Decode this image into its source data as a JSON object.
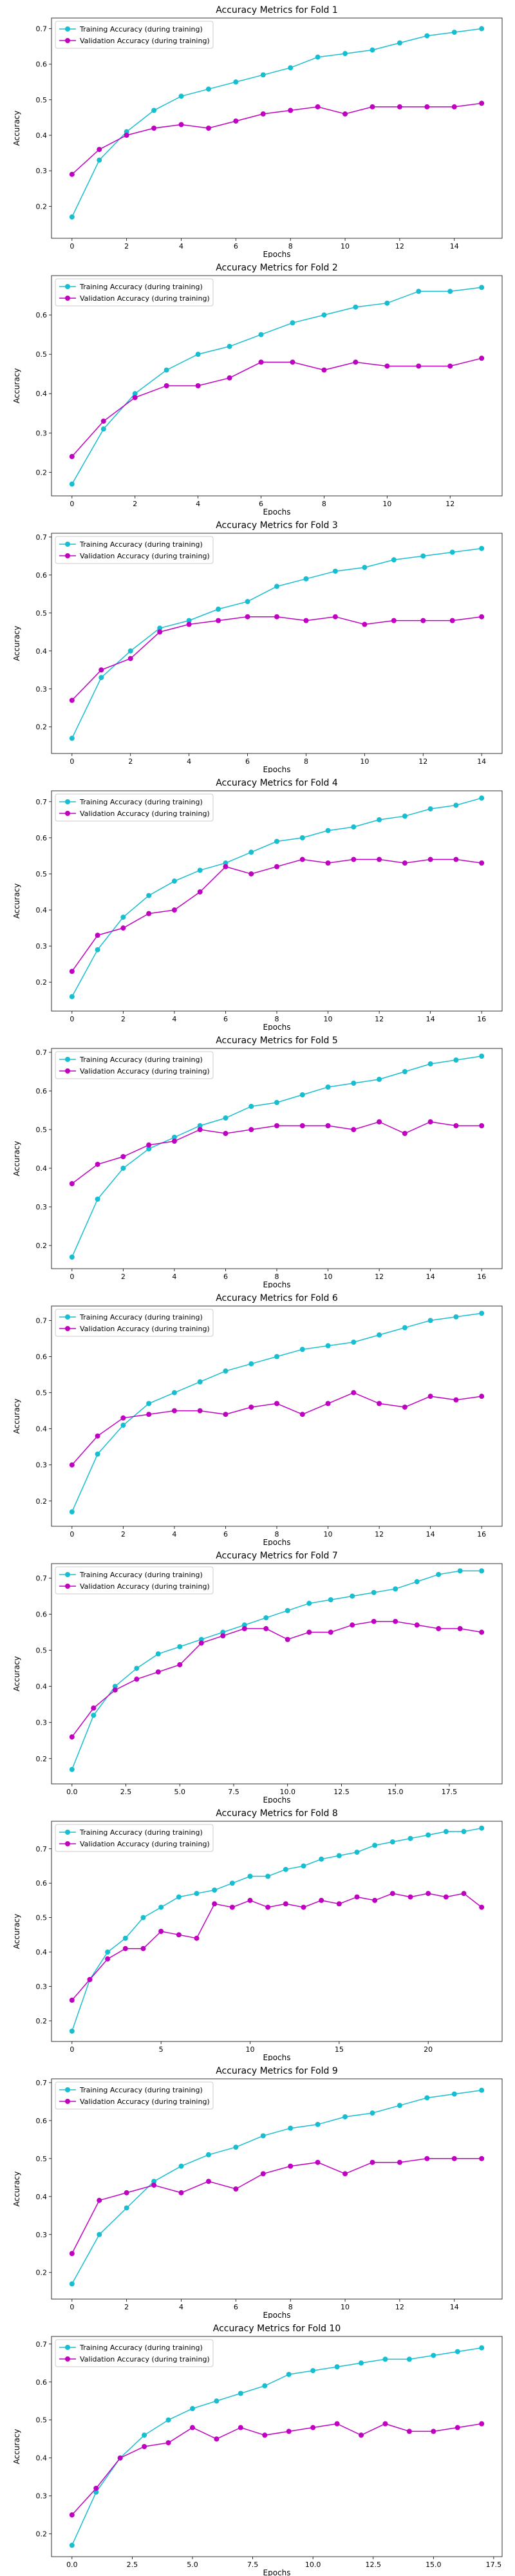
{
  "chart_data": [
    {
      "type": "line",
      "title": "Accuracy Metrics for Fold 1",
      "xlabel": "Epochs",
      "ylabel": "Accuracy",
      "xlim": [
        -0.75,
        15.75
      ],
      "ylim": [
        0.11,
        0.73
      ],
      "xticks": [
        0,
        2,
        4,
        6,
        8,
        10,
        12,
        14
      ],
      "yticks": [
        0.2,
        0.3,
        0.4,
        0.5,
        0.6,
        0.7
      ],
      "x": [
        0,
        1,
        2,
        3,
        4,
        5,
        6,
        7,
        8,
        9,
        10,
        11,
        12,
        13,
        14,
        15
      ],
      "legend": "top-left",
      "series": [
        {
          "name": "Training Accuracy (during training)",
          "color": "#17becf",
          "values": [
            0.17,
            0.33,
            0.41,
            0.47,
            0.51,
            0.53,
            0.55,
            0.57,
            0.59,
            0.62,
            0.63,
            0.64,
            0.66,
            0.68,
            0.69,
            0.7
          ]
        },
        {
          "name": "Validation Accuracy (during training)",
          "color": "#c000c0",
          "values": [
            0.29,
            0.36,
            0.4,
            0.42,
            0.43,
            0.42,
            0.44,
            0.46,
            0.47,
            0.48,
            0.46,
            0.48,
            0.48,
            0.48,
            0.48,
            0.49
          ]
        }
      ]
    },
    {
      "type": "line",
      "title": "Accuracy Metrics for Fold 2",
      "xlabel": "Epochs",
      "ylabel": "Accuracy",
      "xlim": [
        -0.65,
        13.65
      ],
      "ylim": [
        0.14,
        0.7
      ],
      "xticks": [
        0,
        2,
        4,
        6,
        8,
        10,
        12
      ],
      "yticks": [
        0.2,
        0.3,
        0.4,
        0.5,
        0.6
      ],
      "x": [
        0,
        1,
        2,
        3,
        4,
        5,
        6,
        7,
        8,
        9,
        10,
        11,
        12,
        13
      ],
      "legend": "top-left",
      "series": [
        {
          "name": "Training Accuracy (during training)",
          "color": "#17becf",
          "values": [
            0.17,
            0.31,
            0.4,
            0.46,
            0.5,
            0.52,
            0.55,
            0.58,
            0.6,
            0.62,
            0.63,
            0.66,
            0.66,
            0.67
          ]
        },
        {
          "name": "Validation Accuracy (during training)",
          "color": "#c000c0",
          "values": [
            0.24,
            0.33,
            0.39,
            0.42,
            0.42,
            0.44,
            0.48,
            0.48,
            0.46,
            0.48,
            0.47,
            0.47,
            0.47,
            0.49
          ]
        }
      ]
    },
    {
      "type": "line",
      "title": "Accuracy Metrics for Fold 3",
      "xlabel": "Epochs",
      "ylabel": "Accuracy",
      "xlim": [
        -0.7,
        14.7
      ],
      "ylim": [
        0.13,
        0.71
      ],
      "xticks": [
        0,
        2,
        4,
        6,
        8,
        10,
        12,
        14
      ],
      "yticks": [
        0.2,
        0.3,
        0.4,
        0.5,
        0.6,
        0.7
      ],
      "x": [
        0,
        1,
        2,
        3,
        4,
        5,
        6,
        7,
        8,
        9,
        10,
        11,
        12,
        13,
        14
      ],
      "legend": "top-left",
      "series": [
        {
          "name": "Training Accuracy (during training)",
          "color": "#17becf",
          "values": [
            0.17,
            0.33,
            0.4,
            0.46,
            0.48,
            0.51,
            0.53,
            0.57,
            0.59,
            0.61,
            0.62,
            0.64,
            0.65,
            0.66,
            0.67
          ]
        },
        {
          "name": "Validation Accuracy (during training)",
          "color": "#c000c0",
          "values": [
            0.27,
            0.35,
            0.38,
            0.45,
            0.47,
            0.48,
            0.49,
            0.49,
            0.48,
            0.49,
            0.47,
            0.48,
            0.48,
            0.48,
            0.49
          ]
        }
      ]
    },
    {
      "type": "line",
      "title": "Accuracy Metrics for Fold 4",
      "xlabel": "Epochs",
      "ylabel": "Accuracy",
      "xlim": [
        -0.8,
        16.8
      ],
      "ylim": [
        0.12,
        0.73
      ],
      "xticks": [
        0,
        2,
        4,
        6,
        8,
        10,
        12,
        14,
        16
      ],
      "yticks": [
        0.2,
        0.3,
        0.4,
        0.5,
        0.6,
        0.7
      ],
      "x": [
        0,
        1,
        2,
        3,
        4,
        5,
        6,
        7,
        8,
        9,
        10,
        11,
        12,
        13,
        14,
        15,
        16
      ],
      "legend": "top-left",
      "series": [
        {
          "name": "Training Accuracy (during training)",
          "color": "#17becf",
          "values": [
            0.16,
            0.29,
            0.38,
            0.44,
            0.48,
            0.51,
            0.53,
            0.56,
            0.59,
            0.6,
            0.62,
            0.63,
            0.65,
            0.66,
            0.68,
            0.69,
            0.71
          ]
        },
        {
          "name": "Validation Accuracy (during training)",
          "color": "#c000c0",
          "values": [
            0.23,
            0.33,
            0.35,
            0.39,
            0.4,
            0.45,
            0.52,
            0.5,
            0.52,
            0.54,
            0.53,
            0.54,
            0.54,
            0.53,
            0.54,
            0.54,
            0.53
          ]
        }
      ]
    },
    {
      "type": "line",
      "title": "Accuracy Metrics for Fold 5",
      "xlabel": "Epochs",
      "ylabel": "Accuracy",
      "xlim": [
        -0.8,
        16.8
      ],
      "ylim": [
        0.14,
        0.71
      ],
      "xticks": [
        0,
        2,
        4,
        6,
        8,
        10,
        12,
        14,
        16
      ],
      "yticks": [
        0.2,
        0.3,
        0.4,
        0.5,
        0.6,
        0.7
      ],
      "x": [
        0,
        1,
        2,
        3,
        4,
        5,
        6,
        7,
        8,
        9,
        10,
        11,
        12,
        13,
        14,
        15,
        16
      ],
      "legend": "top-left",
      "series": [
        {
          "name": "Training Accuracy (during training)",
          "color": "#17becf",
          "values": [
            0.17,
            0.32,
            0.4,
            0.45,
            0.48,
            0.51,
            0.53,
            0.56,
            0.57,
            0.59,
            0.61,
            0.62,
            0.63,
            0.65,
            0.67,
            0.68,
            0.69
          ]
        },
        {
          "name": "Validation Accuracy (during training)",
          "color": "#c000c0",
          "values": [
            0.36,
            0.41,
            0.43,
            0.46,
            0.47,
            0.5,
            0.49,
            0.5,
            0.51,
            0.51,
            0.51,
            0.5,
            0.52,
            0.49,
            0.52,
            0.51,
            0.51
          ]
        }
      ]
    },
    {
      "type": "line",
      "title": "Accuracy Metrics for Fold 6",
      "xlabel": "Epochs",
      "ylabel": "Accuracy",
      "xlim": [
        -0.8,
        16.8
      ],
      "ylim": [
        0.13,
        0.74
      ],
      "xticks": [
        0,
        2,
        4,
        6,
        8,
        10,
        12,
        14,
        16
      ],
      "yticks": [
        0.2,
        0.3,
        0.4,
        0.5,
        0.6,
        0.7
      ],
      "x": [
        0,
        1,
        2,
        3,
        4,
        5,
        6,
        7,
        8,
        9,
        10,
        11,
        12,
        13,
        14,
        15,
        16
      ],
      "legend": "top-left",
      "series": [
        {
          "name": "Training Accuracy (during training)",
          "color": "#17becf",
          "values": [
            0.17,
            0.33,
            0.41,
            0.47,
            0.5,
            0.53,
            0.56,
            0.58,
            0.6,
            0.62,
            0.63,
            0.64,
            0.66,
            0.68,
            0.7,
            0.71,
            0.72
          ]
        },
        {
          "name": "Validation Accuracy (during training)",
          "color": "#c000c0",
          "values": [
            0.3,
            0.38,
            0.43,
            0.44,
            0.45,
            0.45,
            0.44,
            0.46,
            0.47,
            0.44,
            0.47,
            0.5,
            0.47,
            0.46,
            0.49,
            0.48,
            0.49
          ]
        }
      ]
    },
    {
      "type": "line",
      "title": "Accuracy Metrics for Fold 7",
      "xlabel": "Epochs",
      "ylabel": "Accuracy",
      "xlim": [
        -0.95,
        19.95
      ],
      "ylim": [
        0.13,
        0.74
      ],
      "xticks": [
        0.0,
        2.5,
        5.0,
        7.5,
        10.0,
        12.5,
        15.0,
        17.5
      ],
      "xtick_labels": [
        "0.0",
        "2.5",
        "5.0",
        "7.5",
        "10.0",
        "12.5",
        "15.0",
        "17.5"
      ],
      "yticks": [
        0.2,
        0.3,
        0.4,
        0.5,
        0.6,
        0.7
      ],
      "x": [
        0,
        1,
        2,
        3,
        4,
        5,
        6,
        7,
        8,
        9,
        10,
        11,
        12,
        13,
        14,
        15,
        16,
        17,
        18,
        19
      ],
      "legend": "top-left",
      "series": [
        {
          "name": "Training Accuracy (during training)",
          "color": "#17becf",
          "values": [
            0.17,
            0.32,
            0.4,
            0.45,
            0.49,
            0.51,
            0.53,
            0.55,
            0.57,
            0.59,
            0.61,
            0.63,
            0.64,
            0.65,
            0.66,
            0.67,
            0.69,
            0.71,
            0.72,
            0.72
          ]
        },
        {
          "name": "Validation Accuracy (during training)",
          "color": "#c000c0",
          "values": [
            0.26,
            0.34,
            0.39,
            0.42,
            0.44,
            0.46,
            0.52,
            0.54,
            0.56,
            0.56,
            0.53,
            0.55,
            0.55,
            0.57,
            0.58,
            0.58,
            0.57,
            0.56,
            0.56,
            0.55
          ]
        }
      ]
    },
    {
      "type": "line",
      "title": "Accuracy Metrics for Fold 8",
      "xlabel": "Epochs",
      "ylabel": "Accuracy",
      "xlim": [
        -1.15,
        24.15
      ],
      "ylim": [
        0.14,
        0.78
      ],
      "xticks": [
        0,
        5,
        10,
        15,
        20
      ],
      "yticks": [
        0.2,
        0.3,
        0.4,
        0.5,
        0.6,
        0.7
      ],
      "x": [
        0,
        1,
        2,
        3,
        4,
        5,
        6,
        7,
        8,
        9,
        10,
        11,
        12,
        13,
        14,
        15,
        16,
        17,
        18,
        19,
        20,
        21,
        22,
        23
      ],
      "legend": "top-left",
      "series": [
        {
          "name": "Training Accuracy (during training)",
          "color": "#17becf",
          "values": [
            0.17,
            0.32,
            0.4,
            0.44,
            0.5,
            0.53,
            0.56,
            0.57,
            0.58,
            0.6,
            0.62,
            0.62,
            0.64,
            0.65,
            0.67,
            0.68,
            0.69,
            0.71,
            0.72,
            0.73,
            0.74,
            0.75,
            0.75,
            0.76
          ]
        },
        {
          "name": "Validation Accuracy (during training)",
          "color": "#c000c0",
          "values": [
            0.26,
            0.32,
            0.38,
            0.41,
            0.41,
            0.46,
            0.45,
            0.44,
            0.54,
            0.53,
            0.55,
            0.53,
            0.54,
            0.53,
            0.55,
            0.54,
            0.56,
            0.55,
            0.57,
            0.56,
            0.57,
            0.56,
            0.57,
            0.53
          ]
        }
      ]
    },
    {
      "type": "line",
      "title": "Accuracy Metrics for Fold 9",
      "xlabel": "Epochs",
      "ylabel": "Accuracy",
      "xlim": [
        -0.75,
        15.75
      ],
      "ylim": [
        0.13,
        0.71
      ],
      "xticks": [
        0,
        2,
        4,
        6,
        8,
        10,
        12,
        14
      ],
      "yticks": [
        0.2,
        0.3,
        0.4,
        0.5,
        0.6,
        0.7
      ],
      "x": [
        0,
        1,
        2,
        3,
        4,
        5,
        6,
        7,
        8,
        9,
        10,
        11,
        12,
        13,
        14,
        15
      ],
      "legend": "top-left",
      "series": [
        {
          "name": "Training Accuracy (during training)",
          "color": "#17becf",
          "values": [
            0.17,
            0.3,
            0.37,
            0.44,
            0.48,
            0.51,
            0.53,
            0.56,
            0.58,
            0.59,
            0.61,
            0.62,
            0.64,
            0.66,
            0.67,
            0.68
          ]
        },
        {
          "name": "Validation Accuracy (during training)",
          "color": "#c000c0",
          "values": [
            0.25,
            0.39,
            0.41,
            0.43,
            0.41,
            0.44,
            0.42,
            0.46,
            0.48,
            0.49,
            0.46,
            0.49,
            0.49,
            0.5,
            0.5,
            0.5
          ]
        }
      ]
    },
    {
      "type": "line",
      "title": "Accuracy Metrics for Fold 10",
      "xlabel": "Epochs",
      "ylabel": "Accuracy",
      "xlim": [
        -0.85,
        17.85
      ],
      "ylim": [
        0.14,
        0.72
      ],
      "xticks": [
        0.0,
        2.5,
        5.0,
        7.5,
        10.0,
        12.5,
        15.0,
        17.5
      ],
      "xtick_labels": [
        "0.0",
        "2.5",
        "5.0",
        "7.5",
        "10.0",
        "12.5",
        "15.0",
        "17.5"
      ],
      "yticks": [
        0.2,
        0.3,
        0.4,
        0.5,
        0.6,
        0.7
      ],
      "x": [
        0,
        1,
        2,
        3,
        4,
        5,
        6,
        7,
        8,
        9,
        10,
        11,
        12,
        13,
        14,
        15,
        16,
        17
      ],
      "legend": "top-left",
      "series": [
        {
          "name": "Training Accuracy (during training)",
          "color": "#17becf",
          "values": [
            0.17,
            0.31,
            0.4,
            0.46,
            0.5,
            0.53,
            0.55,
            0.57,
            0.59,
            0.62,
            0.63,
            0.64,
            0.65,
            0.66,
            0.66,
            0.67,
            0.68,
            0.69
          ]
        },
        {
          "name": "Validation Accuracy (during training)",
          "color": "#c000c0",
          "values": [
            0.25,
            0.32,
            0.4,
            0.43,
            0.44,
            0.48,
            0.45,
            0.48,
            0.46,
            0.47,
            0.48,
            0.49,
            0.46,
            0.49,
            0.47,
            0.47,
            0.48,
            0.49
          ]
        }
      ]
    }
  ]
}
